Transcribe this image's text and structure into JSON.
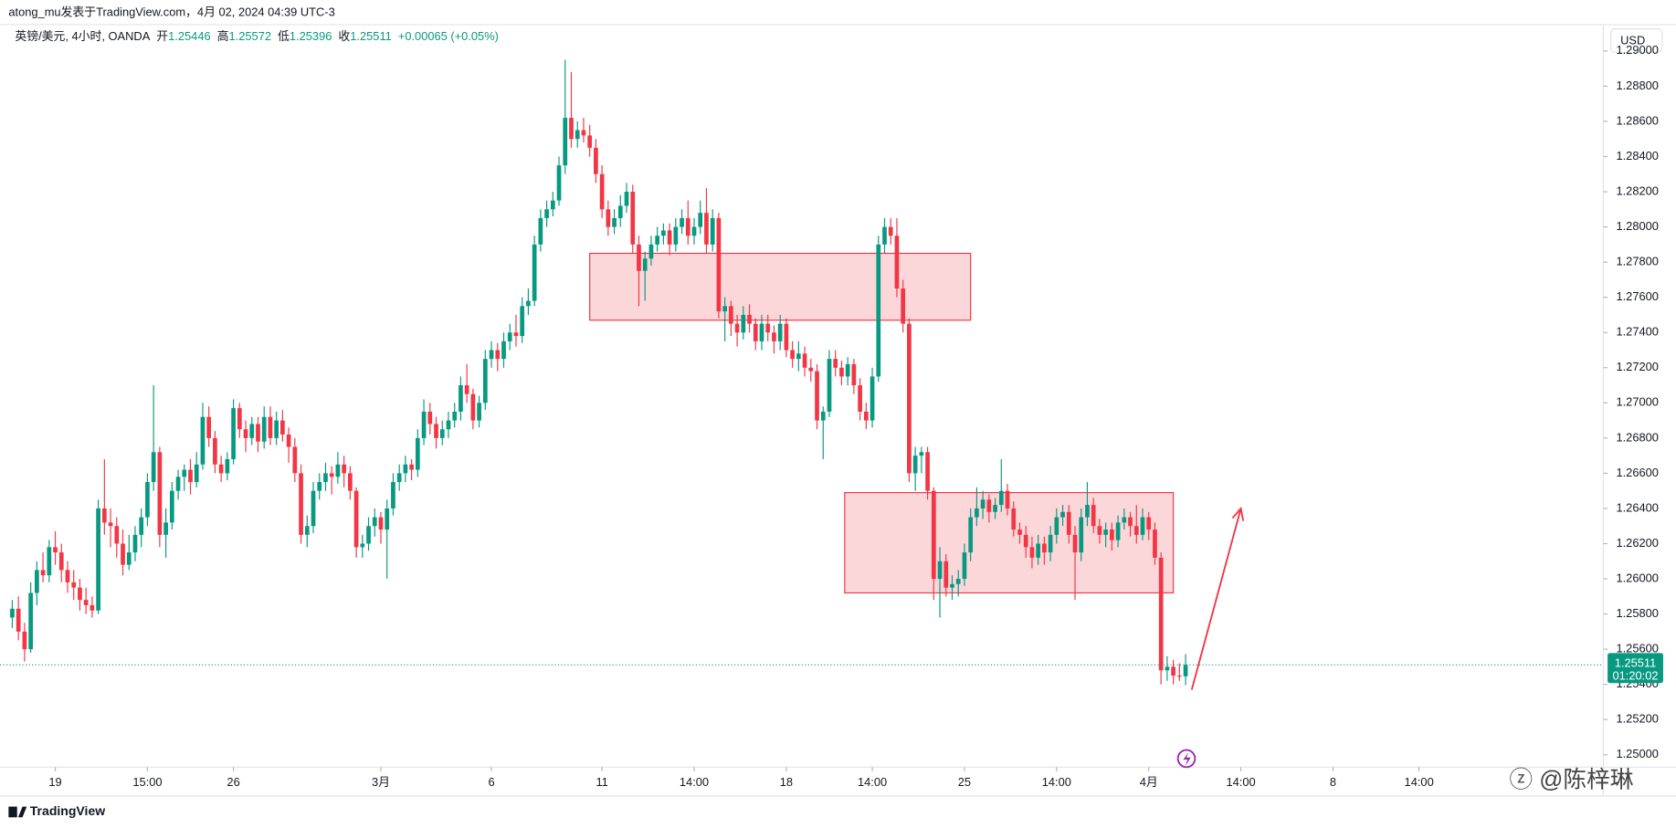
{
  "chart_data": {
    "type": "candlestick",
    "header": "atong_mu发表于TradingView.com，4月 02, 2024 04:39 UTC-3",
    "legend": {
      "symbol": "英镑/美元, 4小时, OANDA",
      "fields": [
        {
          "label": "开",
          "value": 1.25446
        },
        {
          "label": "高",
          "value": 1.25572
        },
        {
          "label": "低",
          "value": 1.25396
        },
        {
          "label": "收",
          "value": 1.25511
        }
      ],
      "change": "+0.00065 (+0.05%)"
    },
    "currency": "USD",
    "last_price": 1.25511,
    "countdown": "01:20:02",
    "brand": "TradingView",
    "watermark": "@陈梓琳",
    "up_color": "#089981",
    "down_color": "#f23645",
    "ylim": [
      1.2493,
      1.2915
    ],
    "yticks": [
      {
        "value": 1.25,
        "label": "1.25000"
      },
      {
        "value": 1.252,
        "label": "1.25200"
      },
      {
        "value": 1.254,
        "label": "1.25400"
      },
      {
        "value": 1.256,
        "label": "1.25600"
      },
      {
        "value": 1.258,
        "label": "1.25800"
      },
      {
        "value": 1.26,
        "label": "1.26000"
      },
      {
        "value": 1.262,
        "label": "1.26200"
      },
      {
        "value": 1.264,
        "label": "1.26400"
      },
      {
        "value": 1.266,
        "label": "1.26600"
      },
      {
        "value": 1.268,
        "label": "1.26800"
      },
      {
        "value": 1.27,
        "label": "1.27000"
      },
      {
        "value": 1.272,
        "label": "1.27200"
      },
      {
        "value": 1.274,
        "label": "1.27400"
      },
      {
        "value": 1.276,
        "label": "1.27600"
      },
      {
        "value": 1.278,
        "label": "1.27800"
      },
      {
        "value": 1.28,
        "label": "1.28000"
      },
      {
        "value": 1.282,
        "label": "1.28200"
      },
      {
        "value": 1.284,
        "label": "1.28400"
      },
      {
        "value": 1.286,
        "label": "1.28600"
      },
      {
        "value": 1.288,
        "label": "1.28800"
      },
      {
        "value": 1.29,
        "label": "1.29000"
      }
    ],
    "xlim": [
      -2,
      259
    ],
    "xticks": [
      {
        "value": 7,
        "label": "19"
      },
      {
        "value": 22,
        "label": "15:00"
      },
      {
        "value": 36,
        "label": "26"
      },
      {
        "value": 60,
        "label": "3月"
      },
      {
        "value": 78,
        "label": "6"
      },
      {
        "value": 96,
        "label": "11"
      },
      {
        "value": 111,
        "label": "14:00"
      },
      {
        "value": 126,
        "label": "18"
      },
      {
        "value": 140,
        "label": "14:00"
      },
      {
        "value": 155,
        "label": "25"
      },
      {
        "value": 170,
        "label": "14:00"
      },
      {
        "value": 185,
        "label": "4月"
      },
      {
        "value": 200,
        "label": "14:00"
      },
      {
        "value": 215,
        "label": "8"
      },
      {
        "value": 229,
        "label": "14:00"
      }
    ],
    "zones": [
      {
        "x": [
          94,
          156
        ],
        "y": [
          1.2785,
          1.2747
        ]
      },
      {
        "x": [
          135.5,
          189
        ],
        "y": [
          1.2649,
          1.2592
        ]
      }
    ],
    "arrow": {
      "x": [
        192,
        200
      ],
      "y": [
        1.2537,
        1.264
      ]
    },
    "ohlc": [
      [
        1.2578,
        1.2588,
        1.2572,
        1.2583
      ],
      [
        1.2583,
        1.259,
        1.2565,
        1.257
      ],
      [
        1.257,
        1.2575,
        1.2553,
        1.256
      ],
      [
        1.256,
        1.2598,
        1.2558,
        1.2592
      ],
      [
        1.2592,
        1.261,
        1.2585,
        1.2605
      ],
      [
        1.2605,
        1.2615,
        1.2598,
        1.2602
      ],
      [
        1.2602,
        1.2622,
        1.2598,
        1.2618
      ],
      [
        1.2618,
        1.2627,
        1.2608,
        1.2615
      ],
      [
        1.2615,
        1.262,
        1.2598,
        1.2605
      ],
      [
        1.2605,
        1.261,
        1.2592,
        1.2598
      ],
      [
        1.2598,
        1.2605,
        1.2588,
        1.2595
      ],
      [
        1.2595,
        1.26,
        1.2582,
        1.2588
      ],
      [
        1.2588,
        1.2595,
        1.258,
        1.2585
      ],
      [
        1.2585,
        1.259,
        1.2578,
        1.2582
      ],
      [
        1.2582,
        1.2645,
        1.258,
        1.264
      ],
      [
        1.264,
        1.2668,
        1.2625,
        1.2632
      ],
      [
        1.2632,
        1.264,
        1.2618,
        1.263
      ],
      [
        1.263,
        1.2635,
        1.2612,
        1.262
      ],
      [
        1.262,
        1.2628,
        1.2602,
        1.2608
      ],
      [
        1.2608,
        1.2625,
        1.2605,
        1.2615
      ],
      [
        1.2615,
        1.263,
        1.261,
        1.2625
      ],
      [
        1.2625,
        1.264,
        1.2618,
        1.2635
      ],
      [
        1.2635,
        1.266,
        1.263,
        1.2655
      ],
      [
        1.2655,
        1.271,
        1.265,
        1.2672
      ],
      [
        1.2672,
        1.2675,
        1.2618,
        1.2625
      ],
      [
        1.2625,
        1.264,
        1.2612,
        1.2632
      ],
      [
        1.2632,
        1.2655,
        1.2628,
        1.265
      ],
      [
        1.265,
        1.2662,
        1.2645,
        1.2658
      ],
      [
        1.2658,
        1.2665,
        1.265,
        1.2662
      ],
      [
        1.2662,
        1.2668,
        1.2648,
        1.2655
      ],
      [
        1.2655,
        1.2672,
        1.2652,
        1.2665
      ],
      [
        1.2665,
        1.27,
        1.2662,
        1.2692
      ],
      [
        1.2692,
        1.2698,
        1.2675,
        1.268
      ],
      [
        1.268,
        1.2684,
        1.266,
        1.2665
      ],
      [
        1.2665,
        1.267,
        1.2655,
        1.266
      ],
      [
        1.266,
        1.2672,
        1.2656,
        1.2668
      ],
      [
        1.2668,
        1.2702,
        1.2665,
        1.2697
      ],
      [
        1.2697,
        1.27,
        1.268,
        1.2685
      ],
      [
        1.2685,
        1.269,
        1.2672,
        1.268
      ],
      [
        1.268,
        1.2692,
        1.2676,
        1.2688
      ],
      [
        1.2688,
        1.2692,
        1.2672,
        1.2678
      ],
      [
        1.2678,
        1.2698,
        1.2674,
        1.2692
      ],
      [
        1.2692,
        1.2698,
        1.2676,
        1.268
      ],
      [
        1.268,
        1.2695,
        1.2676,
        1.269
      ],
      [
        1.269,
        1.2696,
        1.2678,
        1.2682
      ],
      [
        1.2682,
        1.2686,
        1.2666,
        1.2675
      ],
      [
        1.2675,
        1.268,
        1.2655,
        1.266
      ],
      [
        1.266,
        1.2665,
        1.262,
        1.2625
      ],
      [
        1.2625,
        1.2636,
        1.2618,
        1.263
      ],
      [
        1.263,
        1.2655,
        1.2626,
        1.265
      ],
      [
        1.265,
        1.266,
        1.2645,
        1.2655
      ],
      [
        1.2655,
        1.2666,
        1.265,
        1.266
      ],
      [
        1.266,
        1.2664,
        1.2648,
        1.2658
      ],
      [
        1.2658,
        1.2672,
        1.2654,
        1.2665
      ],
      [
        1.2665,
        1.267,
        1.2652,
        1.266
      ],
      [
        1.266,
        1.2664,
        1.2645,
        1.265
      ],
      [
        1.265,
        1.2652,
        1.2612,
        1.2618
      ],
      [
        1.2618,
        1.2625,
        1.2612,
        1.262
      ],
      [
        1.262,
        1.2635,
        1.2616,
        1.263
      ],
      [
        1.263,
        1.264,
        1.2624,
        1.2635
      ],
      [
        1.2635,
        1.2638,
        1.262,
        1.2628
      ],
      [
        1.2628,
        1.2645,
        1.26,
        1.264
      ],
      [
        1.264,
        1.266,
        1.2636,
        1.2655
      ],
      [
        1.2655,
        1.2665,
        1.265,
        1.266
      ],
      [
        1.266,
        1.267,
        1.2655,
        1.2665
      ],
      [
        1.2665,
        1.2668,
        1.2656,
        1.2662
      ],
      [
        1.2662,
        1.2685,
        1.2658,
        1.268
      ],
      [
        1.268,
        1.2702,
        1.2676,
        1.2695
      ],
      [
        1.2695,
        1.27,
        1.2682,
        1.2688
      ],
      [
        1.2688,
        1.2692,
        1.2674,
        1.268
      ],
      [
        1.268,
        1.269,
        1.2676,
        1.2685
      ],
      [
        1.2685,
        1.2695,
        1.268,
        1.269
      ],
      [
        1.269,
        1.27,
        1.2686,
        1.2695
      ],
      [
        1.2695,
        1.2715,
        1.269,
        1.271
      ],
      [
        1.271,
        1.2722,
        1.27,
        1.2705
      ],
      [
        1.2705,
        1.2708,
        1.2685,
        1.269
      ],
      [
        1.269,
        1.2704,
        1.2686,
        1.27
      ],
      [
        1.27,
        1.273,
        1.2696,
        1.2725
      ],
      [
        1.2725,
        1.2735,
        1.272,
        1.273
      ],
      [
        1.273,
        1.2734,
        1.2718,
        1.2725
      ],
      [
        1.2725,
        1.274,
        1.272,
        1.2735
      ],
      [
        1.2735,
        1.2745,
        1.273,
        1.274
      ],
      [
        1.274,
        1.275,
        1.2732,
        1.2738
      ],
      [
        1.2738,
        1.276,
        1.2734,
        1.2755
      ],
      [
        1.2755,
        1.2765,
        1.275,
        1.2758
      ],
      [
        1.2758,
        1.2795,
        1.2755,
        1.279
      ],
      [
        1.279,
        1.281,
        1.2786,
        1.2805
      ],
      [
        1.2805,
        1.2815,
        1.28,
        1.281
      ],
      [
        1.281,
        1.282,
        1.2806,
        1.2815
      ],
      [
        1.2815,
        1.284,
        1.2812,
        1.2835
      ],
      [
        1.2835,
        1.2895,
        1.283,
        1.2862
      ],
      [
        1.2862,
        1.2888,
        1.2845,
        1.285
      ],
      [
        1.285,
        1.286,
        1.2845,
        1.2855
      ],
      [
        1.2855,
        1.2862,
        1.2848,
        1.2852
      ],
      [
        1.2852,
        1.2858,
        1.284,
        1.2845
      ],
      [
        1.2845,
        1.285,
        1.2825,
        1.283
      ],
      [
        1.283,
        1.2835,
        1.2805,
        1.281
      ],
      [
        1.281,
        1.2815,
        1.2795,
        1.28
      ],
      [
        1.28,
        1.281,
        1.2796,
        1.2805
      ],
      [
        1.2805,
        1.2818,
        1.28,
        1.2812
      ],
      [
        1.2812,
        1.2825,
        1.2808,
        1.282
      ],
      [
        1.282,
        1.2824,
        1.2785,
        1.279
      ],
      [
        1.279,
        1.2795,
        1.2755,
        1.2775
      ],
      [
        1.2775,
        1.2786,
        1.2758,
        1.2782
      ],
      [
        1.2782,
        1.2795,
        1.2778,
        1.279
      ],
      [
        1.279,
        1.28,
        1.2786,
        1.2795
      ],
      [
        1.2795,
        1.2802,
        1.279,
        1.2798
      ],
      [
        1.2798,
        1.2802,
        1.2784,
        1.279
      ],
      [
        1.279,
        1.2805,
        1.2786,
        1.28
      ],
      [
        1.28,
        1.281,
        1.2796,
        1.2805
      ],
      [
        1.2805,
        1.2815,
        1.279,
        1.2795
      ],
      [
        1.2795,
        1.2805,
        1.279,
        1.28
      ],
      [
        1.28,
        1.2815,
        1.2796,
        1.2808
      ],
      [
        1.2808,
        1.2822,
        1.2785,
        1.279
      ],
      [
        1.279,
        1.281,
        1.2786,
        1.2805
      ],
      [
        1.2805,
        1.2808,
        1.2748,
        1.2752
      ],
      [
        1.2752,
        1.276,
        1.2735,
        1.2755
      ],
      [
        1.2755,
        1.2758,
        1.2738,
        1.2745
      ],
      [
        1.2745,
        1.275,
        1.2732,
        1.274
      ],
      [
        1.274,
        1.2755,
        1.2736,
        1.275
      ],
      [
        1.275,
        1.2756,
        1.274,
        1.2745
      ],
      [
        1.2745,
        1.2748,
        1.273,
        1.2735
      ],
      [
        1.2735,
        1.275,
        1.273,
        1.2745
      ],
      [
        1.2745,
        1.275,
        1.2735,
        1.274
      ],
      [
        1.274,
        1.2744,
        1.2728,
        1.2735
      ],
      [
        1.2735,
        1.275,
        1.273,
        1.2745
      ],
      [
        1.2745,
        1.2748,
        1.2726,
        1.273
      ],
      [
        1.273,
        1.2735,
        1.272,
        1.2725
      ],
      [
        1.2725,
        1.2735,
        1.2718,
        1.2728
      ],
      [
        1.2728,
        1.2732,
        1.2715,
        1.272
      ],
      [
        1.272,
        1.2725,
        1.2712,
        1.2718
      ],
      [
        1.2718,
        1.2722,
        1.2685,
        1.269
      ],
      [
        1.269,
        1.2698,
        1.2668,
        1.2695
      ],
      [
        1.2695,
        1.273,
        1.2692,
        1.2725
      ],
      [
        1.2725,
        1.273,
        1.2715,
        1.272
      ],
      [
        1.272,
        1.2724,
        1.271,
        1.2715
      ],
      [
        1.2715,
        1.2726,
        1.271,
        1.2722
      ],
      [
        1.2722,
        1.2725,
        1.2705,
        1.271
      ],
      [
        1.271,
        1.2714,
        1.269,
        1.2695
      ],
      [
        1.2695,
        1.27,
        1.2685,
        1.269
      ],
      [
        1.269,
        1.272,
        1.2686,
        1.2715
      ],
      [
        1.2715,
        1.2795,
        1.2712,
        1.279
      ],
      [
        1.279,
        1.2805,
        1.2785,
        1.28
      ],
      [
        1.28,
        1.2805,
        1.279,
        1.2795
      ],
      [
        1.2795,
        1.2805,
        1.276,
        1.2765
      ],
      [
        1.2765,
        1.277,
        1.274,
        1.2745
      ],
      [
        1.2745,
        1.2748,
        1.2655,
        1.266
      ],
      [
        1.266,
        1.2675,
        1.265,
        1.267
      ],
      [
        1.267,
        1.2675,
        1.266,
        1.2672
      ],
      [
        1.2672,
        1.2675,
        1.2645,
        1.265
      ],
      [
        1.265,
        1.2652,
        1.2588,
        1.26
      ],
      [
        1.26,
        1.2618,
        1.2578,
        1.261
      ],
      [
        1.261,
        1.2614,
        1.259,
        1.2595
      ],
      [
        1.2595,
        1.2602,
        1.2588,
        1.2597
      ],
      [
        1.2597,
        1.2605,
        1.259,
        1.26
      ],
      [
        1.26,
        1.262,
        1.2596,
        1.2615
      ],
      [
        1.2615,
        1.264,
        1.261,
        1.2635
      ],
      [
        1.2635,
        1.2652,
        1.263,
        1.264
      ],
      [
        1.264,
        1.265,
        1.2634,
        1.2645
      ],
      [
        1.2645,
        1.2648,
        1.2632,
        1.2638
      ],
      [
        1.2638,
        1.2646,
        1.2634,
        1.2642
      ],
      [
        1.2642,
        1.2668,
        1.2638,
        1.265
      ],
      [
        1.265,
        1.2654,
        1.2636,
        1.264
      ],
      [
        1.264,
        1.2644,
        1.2624,
        1.2628
      ],
      [
        1.2628,
        1.2632,
        1.262,
        1.2625
      ],
      [
        1.2625,
        1.263,
        1.2612,
        1.2618
      ],
      [
        1.2618,
        1.2624,
        1.2606,
        1.2612
      ],
      [
        1.2612,
        1.2625,
        1.2608,
        1.262
      ],
      [
        1.262,
        1.2624,
        1.2608,
        1.2615
      ],
      [
        1.2615,
        1.263,
        1.261,
        1.2625
      ],
      [
        1.2625,
        1.264,
        1.262,
        1.2635
      ],
      [
        1.2635,
        1.2642,
        1.263,
        1.2638
      ],
      [
        1.2638,
        1.2642,
        1.262,
        1.2625
      ],
      [
        1.2625,
        1.263,
        1.2588,
        1.2615
      ],
      [
        1.2615,
        1.264,
        1.261,
        1.2635
      ],
      [
        1.2635,
        1.2655,
        1.263,
        1.2642
      ],
      [
        1.2642,
        1.2646,
        1.2626,
        1.263
      ],
      [
        1.263,
        1.2634,
        1.262,
        1.2625
      ],
      [
        1.2625,
        1.2632,
        1.2618,
        1.2628
      ],
      [
        1.2628,
        1.2632,
        1.2616,
        1.2622
      ],
      [
        1.2622,
        1.2636,
        1.2618,
        1.2632
      ],
      [
        1.2632,
        1.264,
        1.2628,
        1.2635
      ],
      [
        1.2635,
        1.2638,
        1.2624,
        1.263
      ],
      [
        1.263,
        1.2642,
        1.262,
        1.2625
      ],
      [
        1.2625,
        1.264,
        1.2622,
        1.2635
      ],
      [
        1.2635,
        1.2638,
        1.2622,
        1.2628
      ],
      [
        1.2628,
        1.2632,
        1.2608,
        1.2612
      ],
      [
        1.2612,
        1.2615,
        1.254,
        1.2548
      ],
      [
        1.2548,
        1.2556,
        1.2542,
        1.255
      ],
      [
        1.255,
        1.2554,
        1.254,
        1.2545
      ],
      [
        1.2545,
        1.2552,
        1.2542,
        1.25446
      ],
      [
        1.25446,
        1.25572,
        1.25396,
        1.25511
      ]
    ]
  }
}
